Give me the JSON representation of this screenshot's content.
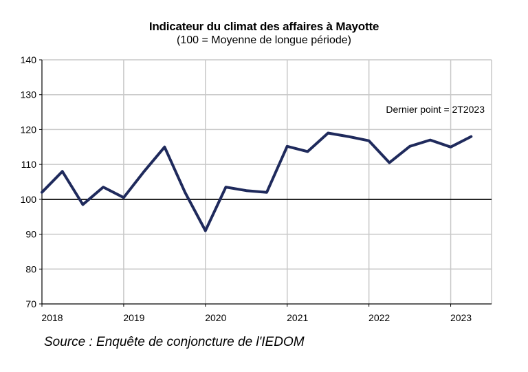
{
  "chart_data": {
    "type": "line",
    "title": "Indicateur du climat des affaires à Mayotte",
    "subtitle": "(100 = Moyenne de longue période)",
    "ylim": [
      70,
      140
    ],
    "yticks": [
      70,
      80,
      90,
      100,
      110,
      120,
      130,
      140
    ],
    "xlim": [
      2018.0,
      2023.5
    ],
    "xticks": [
      2018,
      2019,
      2020,
      2021,
      2022,
      2023
    ],
    "xtick_labels": [
      "2018",
      "2019",
      "2020",
      "2021",
      "2022",
      "2023"
    ],
    "reference_line": 100,
    "grid": true,
    "line_color": "#1f2a5c",
    "series": [
      {
        "x": [
          2018.0,
          2018.25,
          2018.5,
          2018.75,
          2019.0,
          2019.25,
          2019.5,
          2019.75,
          2020.0,
          2020.25,
          2020.5,
          2020.75,
          2021.0,
          2021.25,
          2021.5,
          2021.75,
          2022.0,
          2022.25,
          2022.5,
          2022.75,
          2023.0,
          2023.25
        ],
        "values": [
          102,
          108,
          98.5,
          103.5,
          100.5,
          108,
          115,
          102,
          91,
          103.5,
          102.5,
          102,
          115.2,
          113.7,
          119,
          118,
          116.8,
          110.5,
          115.2,
          117,
          115,
          118
        ]
      }
    ],
    "annotation": "Dernier point = 2T2023"
  },
  "source": "Source : Enquête de conjoncture de l'IEDOM"
}
